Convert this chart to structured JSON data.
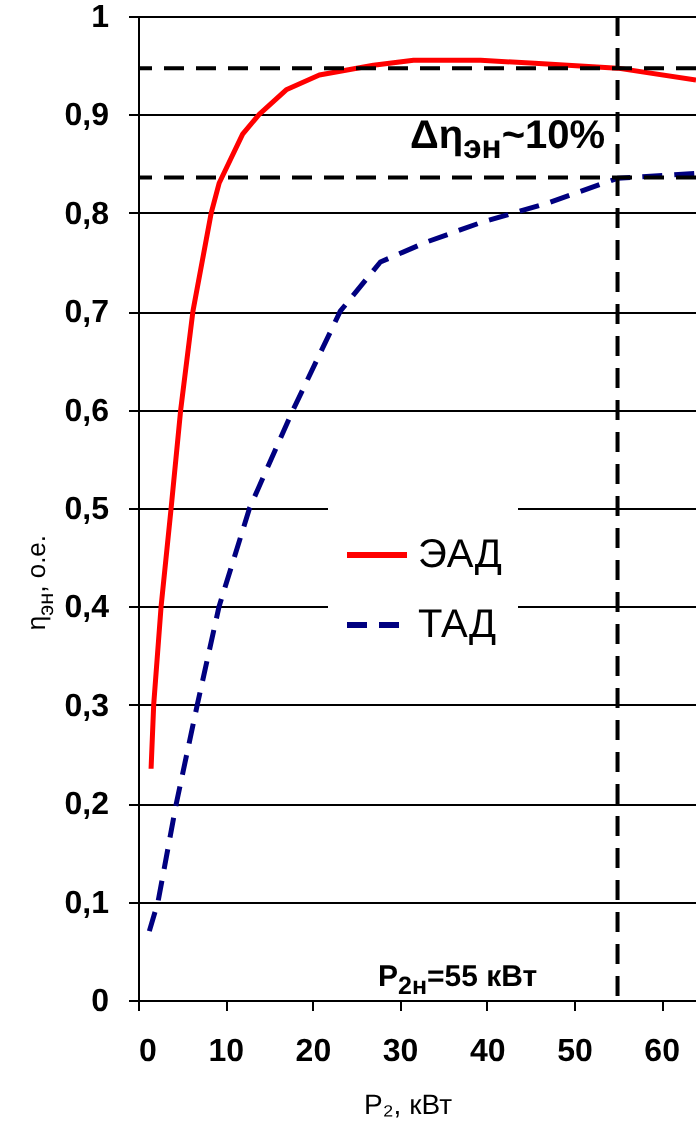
{
  "chart_data": {
    "type": "line",
    "xlabel": "P₂, кВт",
    "ylabel": "η$_{эн}$, о.е.",
    "xlim": [
      0,
      64
    ],
    "xticks": [
      0,
      10,
      20,
      30,
      40,
      50,
      60
    ],
    "ylim": [
      0,
      1
    ],
    "yticks": [
      {
        "value": 0,
        "label": "0"
      },
      {
        "value": 0.1,
        "label": "0,1"
      },
      {
        "value": 0.2,
        "label": "0,2"
      },
      {
        "value": 0.3,
        "label": "0,3"
      },
      {
        "value": 0.4,
        "label": "0,4"
      },
      {
        "value": 0.5,
        "label": "0,5"
      },
      {
        "value": 0.6,
        "label": "0,6"
      },
      {
        "value": 0.7,
        "label": "0,7"
      },
      {
        "value": 0.8,
        "label": "0,8"
      },
      {
        "value": 0.9,
        "label": "0,9"
      },
      {
        "value": 1,
        "label": "1"
      }
    ],
    "grid": "y",
    "legend": "right",
    "marker": "none",
    "series": [
      {
        "name": "ЭАД",
        "color": "#ff0000",
        "line_style": "solid",
        "x": [
          1.5,
          1.8,
          2.65,
          3.8,
          4.9,
          6.3,
          8.4,
          9.3,
          12,
          13.9,
          17,
          20.8,
          27,
          31.6,
          39.3,
          45.5,
          55,
          64
        ],
        "values": [
          0.235,
          0.3,
          0.4,
          0.5,
          0.6,
          0.7,
          0.8,
          0.83,
          0.88,
          0.9,
          0.925,
          0.94,
          0.95,
          0.955,
          0.955,
          0.952,
          0.947,
          0.935
        ]
      },
      {
        "name": "ТАД",
        "color": "#000080",
        "line_style": "dashed",
        "x": [
          1.3,
          2.3,
          4.4,
          6.8,
          9.3,
          12.8,
          17.8,
          23.2,
          27.8,
          33,
          39.3,
          47,
          55,
          64
        ],
        "values": [
          0.07,
          0.1,
          0.2,
          0.3,
          0.4,
          0.5,
          0.6,
          0.7,
          0.75,
          0.77,
          0.79,
          0.81,
          0.835,
          0.84
        ]
      }
    ],
    "ref_lines": [
      {
        "axis": "y",
        "value": 0.947,
        "color": "#000000",
        "line_style": "dashed"
      },
      {
        "axis": "y",
        "value": 0.836,
        "color": "#000000",
        "line_style": "dashed"
      },
      {
        "axis": "x",
        "value": 55,
        "color": "#000000",
        "line_style": "dashed"
      }
    ],
    "annotations": [
      "Δη$_{эн}$~10%",
      "P$_{2н}$=55 кВт"
    ]
  }
}
